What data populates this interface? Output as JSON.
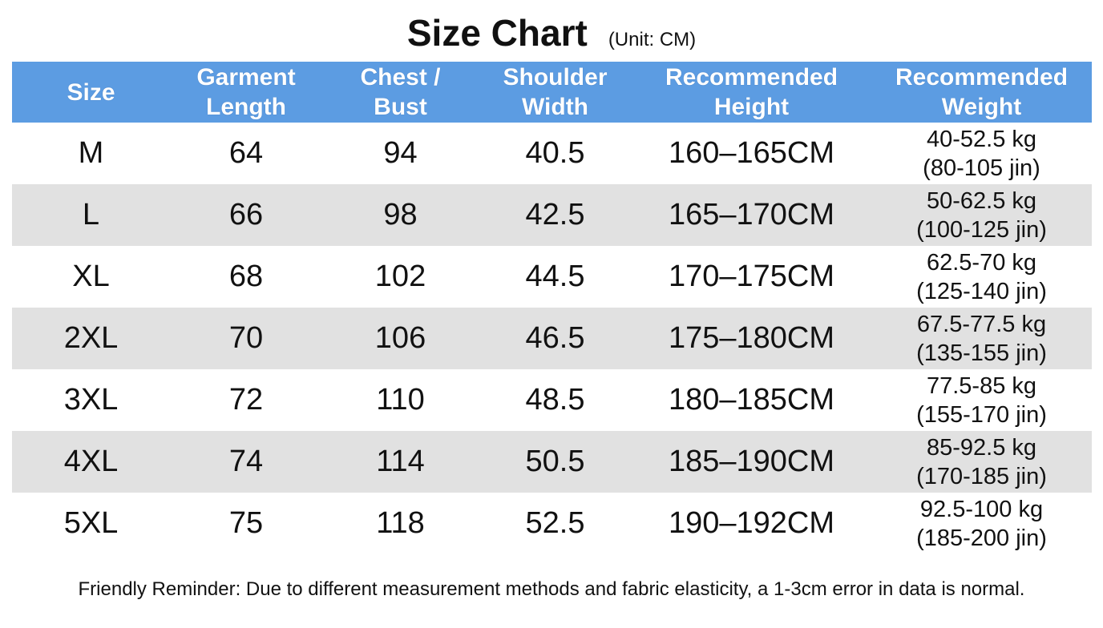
{
  "title": "Size Chart",
  "unit": "(Unit: CM)",
  "table": {
    "header": [
      [
        "Size"
      ],
      [
        "Garment",
        "Length"
      ],
      [
        "Chest /",
        "Bust"
      ],
      [
        "Shoulder",
        "Width"
      ],
      [
        "Recommended",
        "Height"
      ],
      [
        "Recommended",
        "Weight"
      ]
    ],
    "rows": [
      [
        "M",
        64,
        94,
        40.5,
        "160–165CM",
        [
          "40-52.5 kg",
          "(80-105 jin)"
        ]
      ],
      [
        "L",
        66,
        98,
        42.5,
        "165–170CM",
        [
          "50-62.5 kg",
          "(100-125 jin)"
        ]
      ],
      [
        "XL",
        68,
        102,
        44.5,
        "170–175CM",
        [
          "62.5-70 kg",
          "(125-140 jin)"
        ]
      ],
      [
        "2XL",
        70,
        106,
        46.5,
        "175–180CM",
        [
          "67.5-77.5 kg",
          "(135-155 jin)"
        ]
      ],
      [
        "3XL",
        72,
        110,
        48.5,
        "180–185CM",
        [
          "77.5-85 kg",
          "(155-170 jin)"
        ]
      ],
      [
        "4XL",
        74,
        114,
        50.5,
        "185–190CM",
        [
          "85-92.5 kg",
          "(170-185 jin)"
        ]
      ],
      [
        "5XL",
        75,
        118,
        52.5,
        "190–192CM",
        [
          "92.5-100 kg",
          "(185-200 jin)"
        ]
      ]
    ]
  },
  "footer": "Friendly Reminder: Due to different measurement methods and fabric elasticity, a 1-3cm error in data is normal."
}
